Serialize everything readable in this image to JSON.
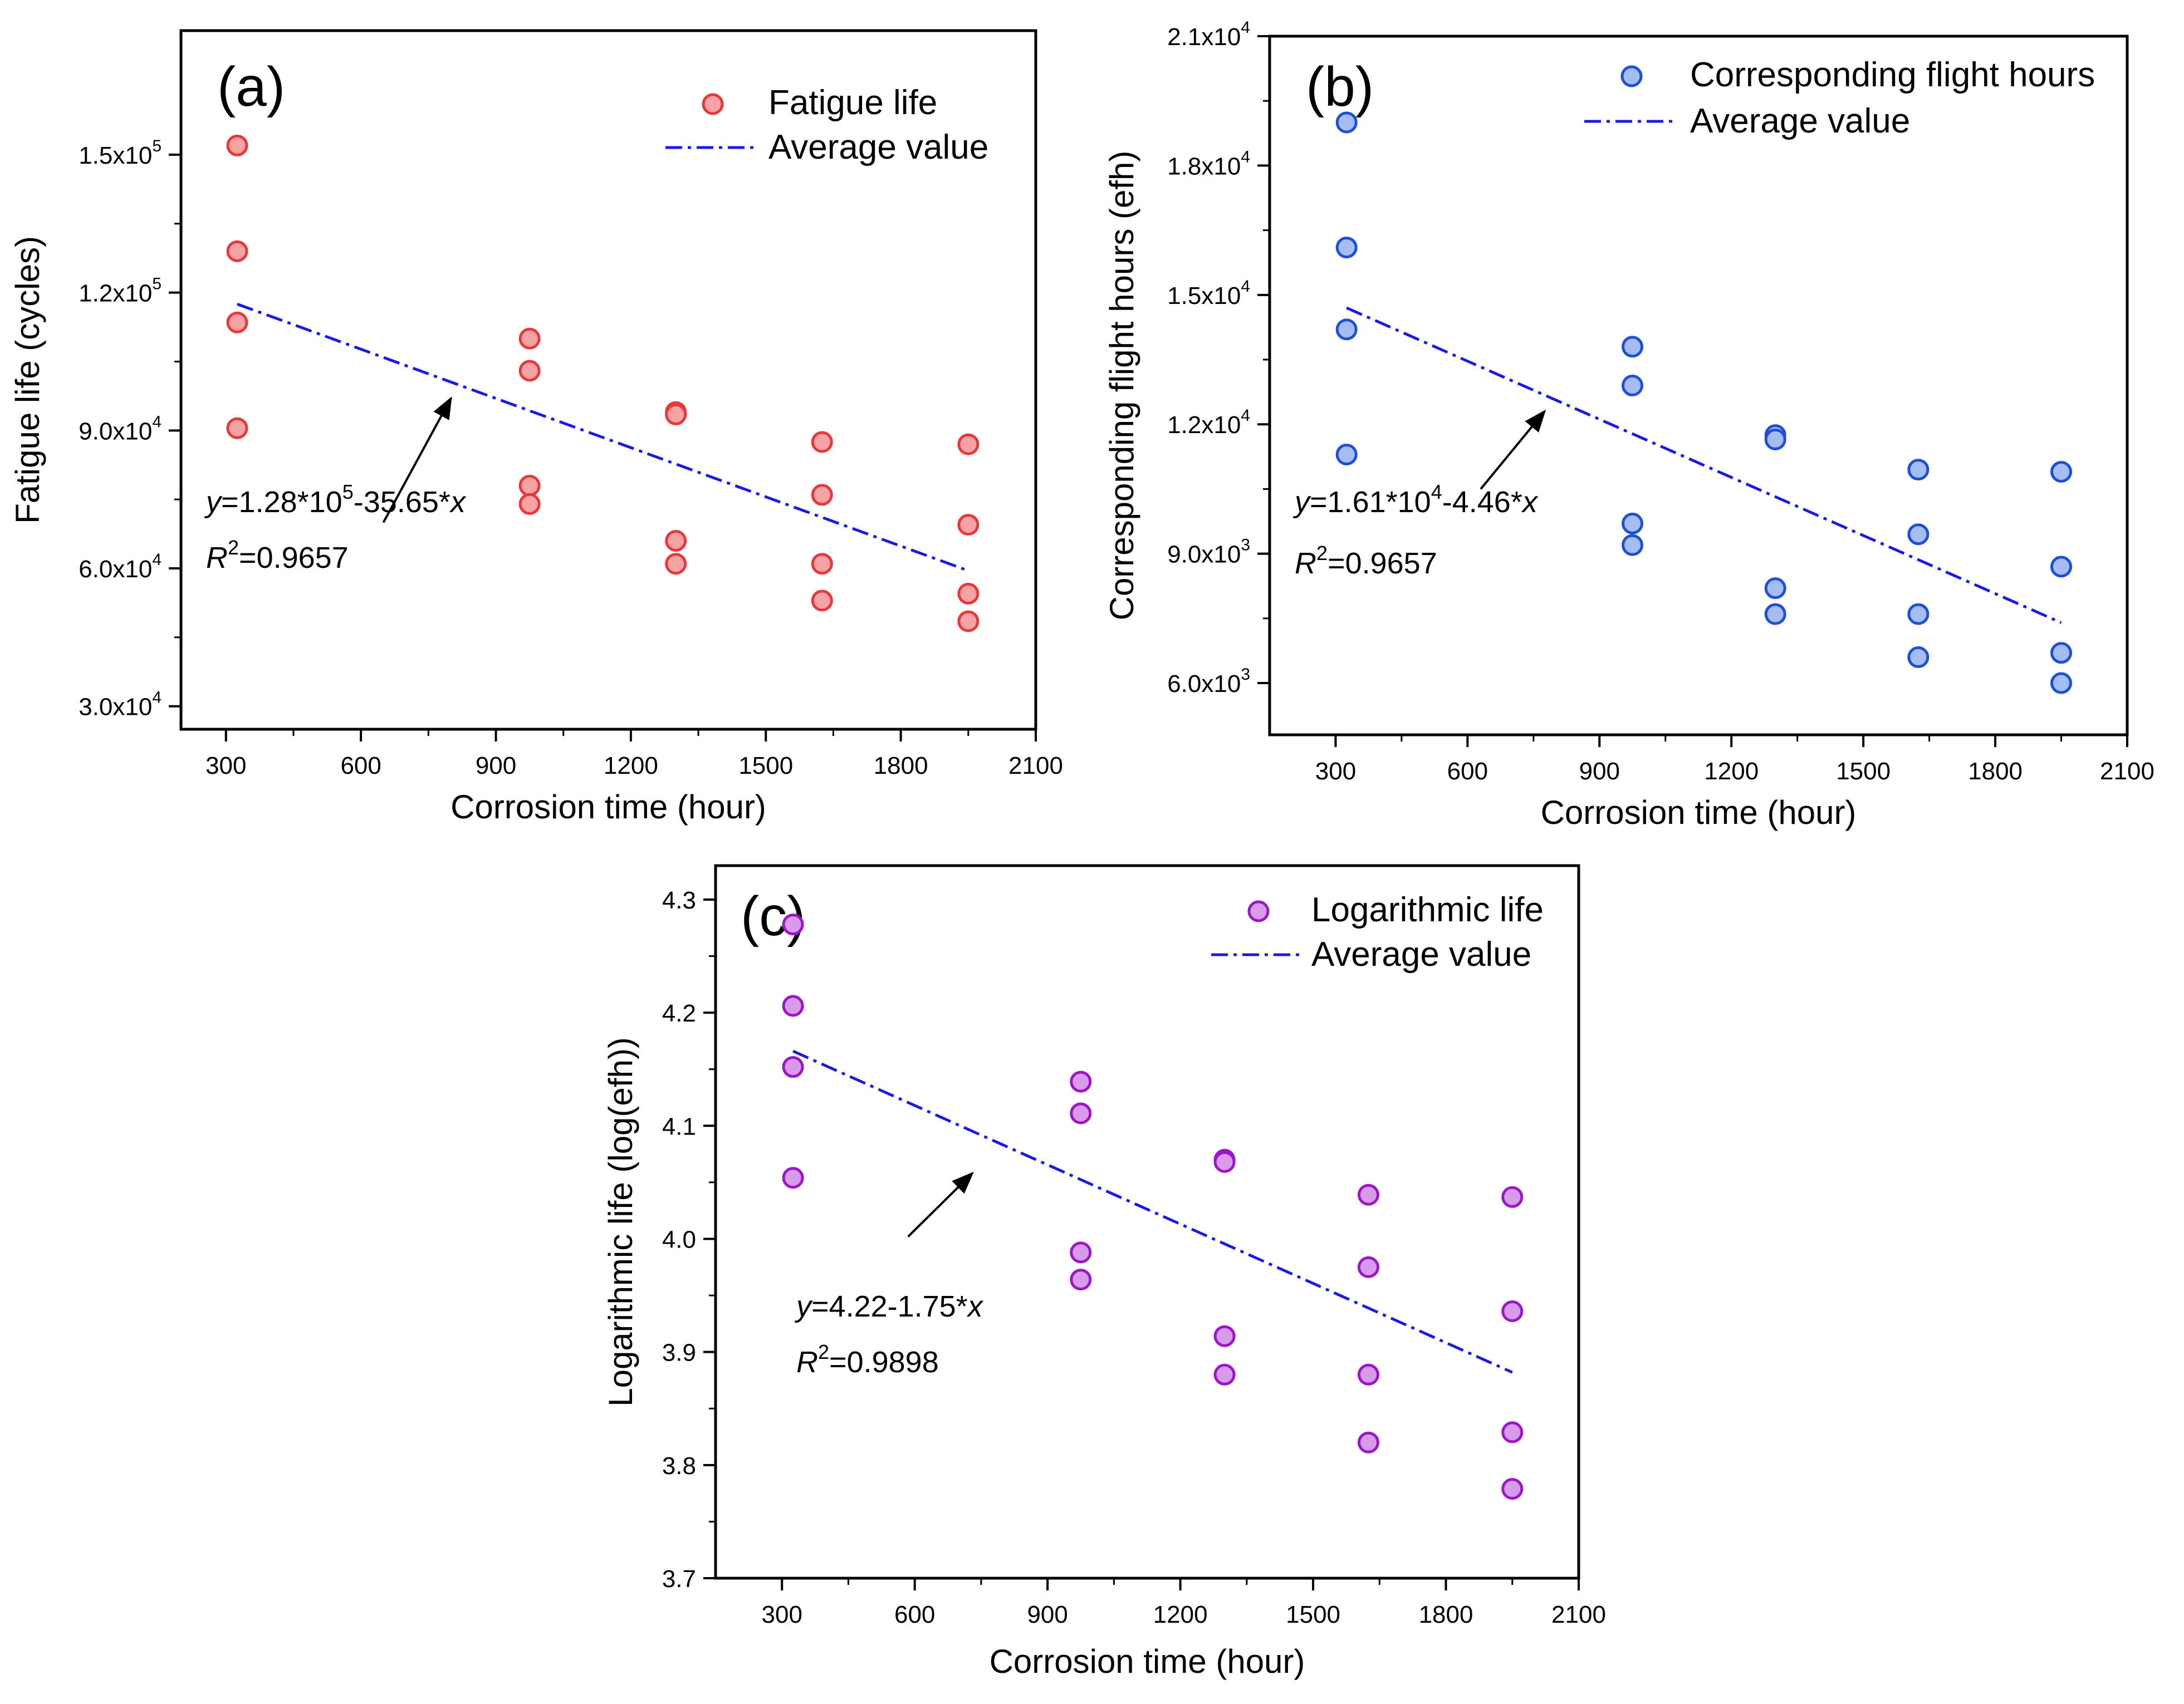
{
  "chart_data": [
    {
      "panel": "(a)",
      "type": "scatter",
      "xlabel": "Corrosion time (hour)",
      "ylabel": "Fatigue life (cycles)",
      "xlim": [
        200,
        2100
      ],
      "ylim": [
        25000,
        177000
      ],
      "x_ticks": [
        300,
        600,
        900,
        1200,
        1500,
        1800,
        2100
      ],
      "y_ticks": [
        {
          "value": 30000,
          "mantissa": "3.0x10",
          "exp": "4"
        },
        {
          "value": 60000,
          "mantissa": "6.0x10",
          "exp": "4"
        },
        {
          "value": 90000,
          "mantissa": "9.0x10",
          "exp": "4"
        },
        {
          "value": 120000,
          "mantissa": "1.2x10",
          "exp": "5"
        },
        {
          "value": 150000,
          "mantissa": "1.5x10",
          "exp": "5"
        }
      ],
      "color": "#e8383b",
      "fill": "#f7a3a3",
      "series": [
        {
          "name": "Fatigue life",
          "points": [
            [
              325,
              152000
            ],
            [
              325,
              129000
            ],
            [
              325,
              113500
            ],
            [
              325,
              90500
            ],
            [
              975,
              110000
            ],
            [
              975,
              103000
            ],
            [
              975,
              78000
            ],
            [
              975,
              74000
            ],
            [
              1300,
              94000
            ],
            [
              1300,
              93500
            ],
            [
              1300,
              66000
            ],
            [
              1300,
              61000
            ],
            [
              1625,
              87500
            ],
            [
              1625,
              76000
            ],
            [
              1625,
              61000
            ],
            [
              1625,
              53000
            ],
            [
              1950,
              87000
            ],
            [
              1950,
              69500
            ],
            [
              1950,
              54500
            ],
            [
              1950,
              48500
            ]
          ]
        },
        {
          "name": "Average value",
          "line": [
            [
              325,
              117500
            ],
            [
              1950,
              59500
            ]
          ]
        }
      ],
      "equation": {
        "y": "y",
        "rest": "=1.28*10",
        "exp": "5",
        "tail": "-35.65*",
        "x": "x"
      },
      "r2": {
        "r": "R",
        "sup": "2",
        "val": "=0.9657"
      },
      "arrow": {
        "from": [
          650,
          70000
        ],
        "to": [
          800,
          97000
        ]
      }
    },
    {
      "panel": "(b)",
      "type": "scatter",
      "xlabel": "Corrosion time (hour)",
      "ylabel": "Corresponding flight hours (efh)",
      "xlim": [
        150,
        2100
      ],
      "ylim": [
        4800,
        21000
      ],
      "x_ticks": [
        300,
        600,
        900,
        1200,
        1500,
        1800,
        2100
      ],
      "y_ticks": [
        {
          "value": 6000,
          "mantissa": "6.0x10",
          "exp": "3"
        },
        {
          "value": 9000,
          "mantissa": "9.0x10",
          "exp": "3"
        },
        {
          "value": 12000,
          "mantissa": "1.2x10",
          "exp": "4"
        },
        {
          "value": 15000,
          "mantissa": "1.5x10",
          "exp": "4"
        },
        {
          "value": 18000,
          "mantissa": "1.8x10",
          "exp": "4"
        },
        {
          "value": 21000,
          "mantissa": "2.1x10",
          "exp": "4"
        }
      ],
      "color": "#1d4fd8",
      "fill": "#a5bdf2",
      "series": [
        {
          "name": "Corresponding flight hours",
          "points": [
            [
              325,
              19000
            ],
            [
              325,
              16100
            ],
            [
              325,
              14200
            ],
            [
              325,
              11300
            ],
            [
              975,
              13800
            ],
            [
              975,
              12900
            ],
            [
              975,
              9700
            ],
            [
              975,
              9200
            ],
            [
              1300,
              11750
            ],
            [
              1300,
              11650
            ],
            [
              1300,
              8200
            ],
            [
              1300,
              7600
            ],
            [
              1625,
              10950
            ],
            [
              1625,
              9450
            ],
            [
              1625,
              7600
            ],
            [
              1625,
              6600
            ],
            [
              1950,
              10900
            ],
            [
              1950,
              8700
            ],
            [
              1950,
              6700
            ],
            [
              1950,
              6000
            ]
          ]
        },
        {
          "name": "Average value",
          "line": [
            [
              325,
              14700
            ],
            [
              1950,
              7400
            ]
          ]
        }
      ],
      "equation": {
        "y": "y",
        "rest": "=1.61*10",
        "exp": "4",
        "tail": "-4.46*",
        "x": "x"
      },
      "r2": {
        "r": "R",
        "sup": "2",
        "val": "=0.9657"
      },
      "arrow": {
        "from": [
          630,
          10500
        ],
        "to": [
          775,
          12300
        ]
      }
    },
    {
      "panel": "(c)",
      "type": "scatter",
      "xlabel": "Corrosion time (hour)",
      "ylabel": "Logarithmic life (log(efh))",
      "xlim": [
        150,
        2100
      ],
      "ylim": [
        3.7,
        4.33
      ],
      "x_ticks": [
        300,
        600,
        900,
        1200,
        1500,
        1800,
        2100
      ],
      "y_ticks": [
        {
          "value": 3.7,
          "text": "3.7"
        },
        {
          "value": 3.8,
          "text": "3.8"
        },
        {
          "value": 3.9,
          "text": "3.9"
        },
        {
          "value": 4.0,
          "text": "4.0"
        },
        {
          "value": 4.1,
          "text": "4.1"
        },
        {
          "value": 4.2,
          "text": "4.2"
        },
        {
          "value": 4.3,
          "text": "4.3"
        }
      ],
      "color": "#9b16c9",
      "fill": "#d79be9",
      "series": [
        {
          "name": "Logarithmic life",
          "points": [
            [
              325,
              4.278
            ],
            [
              325,
              4.206
            ],
            [
              325,
              4.152
            ],
            [
              325,
              4.054
            ],
            [
              975,
              4.139
            ],
            [
              975,
              4.111
            ],
            [
              975,
              3.988
            ],
            [
              975,
              3.964
            ],
            [
              1300,
              4.07
            ],
            [
              1300,
              4.068
            ],
            [
              1300,
              3.914
            ],
            [
              1300,
              3.88
            ],
            [
              1625,
              4.039
            ],
            [
              1625,
              3.975
            ],
            [
              1625,
              3.88
            ],
            [
              1625,
              3.82
            ],
            [
              1950,
              4.037
            ],
            [
              1950,
              3.936
            ],
            [
              1950,
              3.829
            ],
            [
              1950,
              3.779
            ]
          ]
        },
        {
          "name": "Average value",
          "line": [
            [
              325,
              4.166
            ],
            [
              1950,
              3.882
            ]
          ]
        }
      ],
      "equation": {
        "y": "y",
        "rest": "=4.22-1.75*",
        "exp": "",
        "tail": "",
        "x": "x"
      },
      "r2": {
        "r": "R",
        "sup": "2",
        "val": "=0.9898"
      },
      "arrow": {
        "from": [
          585,
          4.002
        ],
        "to": [
          730,
          4.058
        ]
      }
    }
  ],
  "legend_line_color": "#1a1ae6"
}
